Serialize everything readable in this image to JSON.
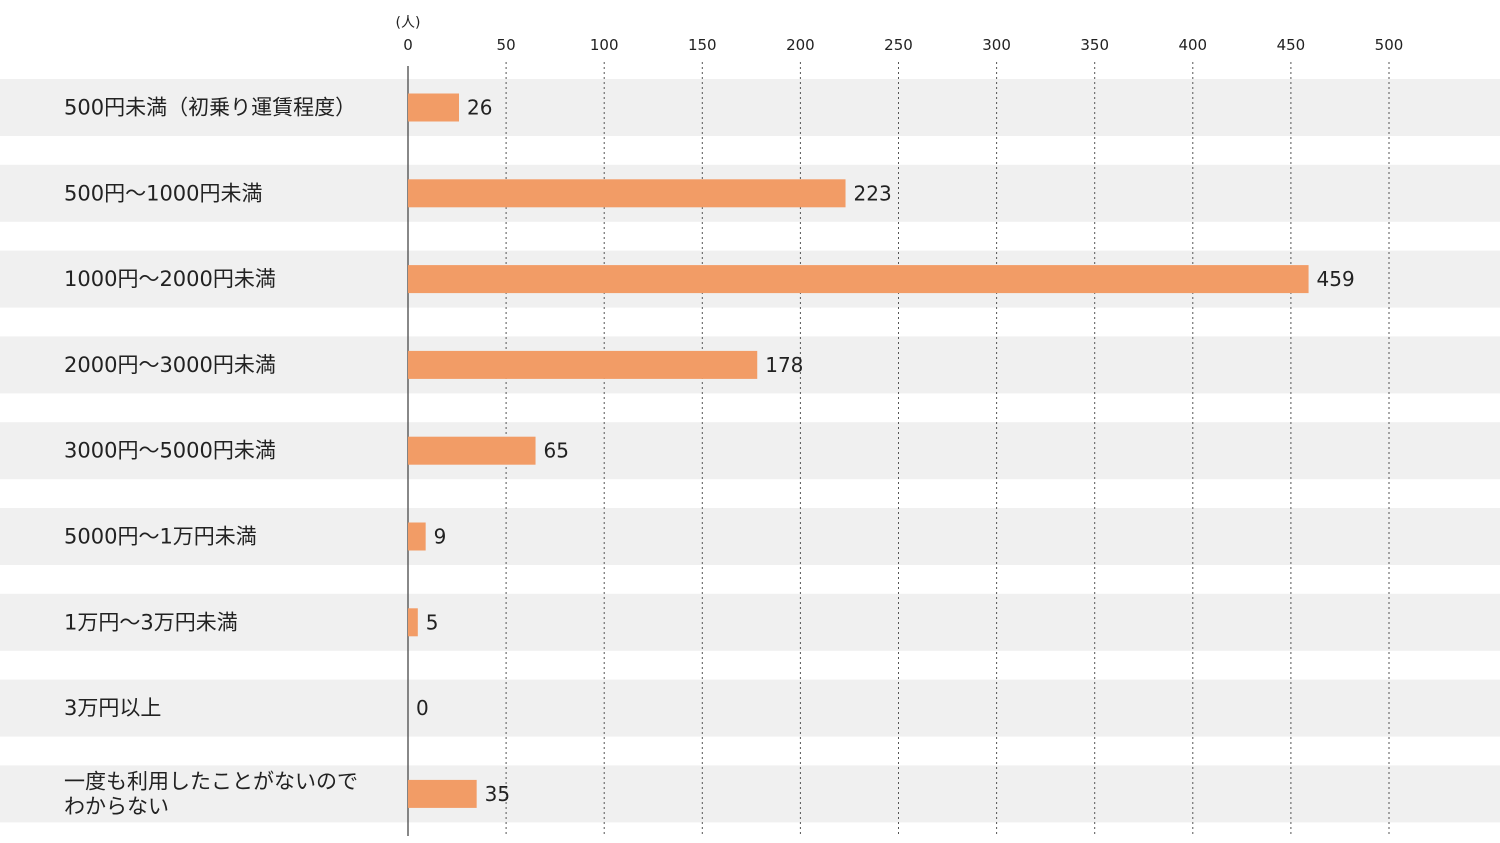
{
  "colors": {
    "bar": "#f29c66",
    "band": "#f0f0f0",
    "axis": "#555555",
    "grid": "#555555",
    "text": "#222222"
  },
  "chart_data": {
    "type": "bar",
    "orientation": "horizontal",
    "unit": "(人)",
    "xlim": [
      0,
      500
    ],
    "ticks": [
      0,
      50,
      100,
      150,
      200,
      250,
      300,
      350,
      400,
      450,
      500
    ],
    "tick_labels": [
      "0",
      "50",
      "100",
      "150",
      "200",
      "250",
      "300",
      "350",
      "400",
      "450",
      "500"
    ],
    "grid": true,
    "categories": [
      [
        "500円未満（初乗り運賃程度）"
      ],
      [
        "500円〜1000円未満"
      ],
      [
        "1000円〜2000円未満"
      ],
      [
        "2000円〜3000円未満"
      ],
      [
        "3000円〜5000円未満"
      ],
      [
        "5000円〜1万円未満"
      ],
      [
        "1万円〜3万円未満"
      ],
      [
        "3万円以上"
      ],
      [
        "一度も利用したことがないので",
        "わからない"
      ]
    ],
    "values": [
      26,
      223,
      459,
      178,
      65,
      9,
      5,
      0,
      35
    ]
  }
}
